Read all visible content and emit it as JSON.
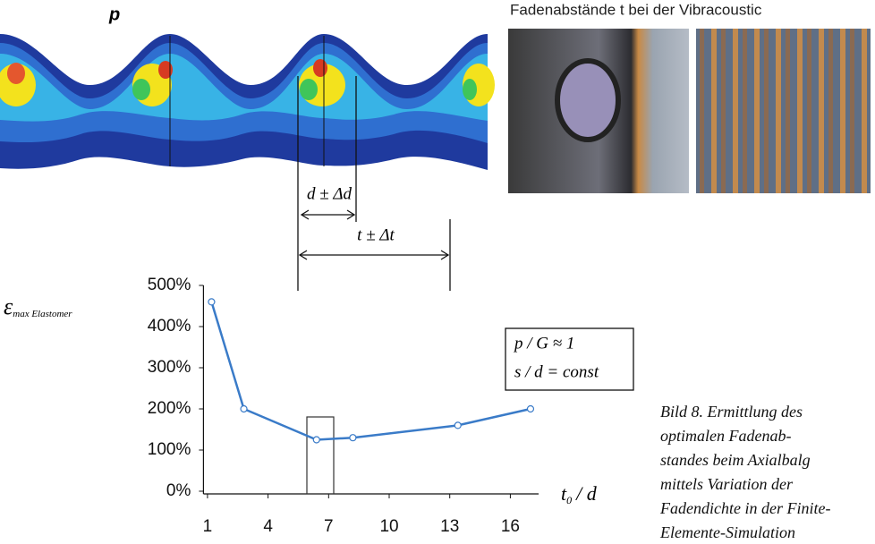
{
  "figure": {
    "pressure_label": "p",
    "photo_caption": "Fadenabstände t bei der Vibracoustic",
    "thread_spacing_label": "d ± Δd",
    "pitch_label": "t ± Δt",
    "caption_lines": [
      "Bild 8. Ermittlung des",
      "optimalen Fadenab-",
      "standes beim Axialbalg",
      "mittels Variation der",
      "Fadendichte in der Finite-",
      "Elemente-Simulation"
    ]
  },
  "chart_data": {
    "type": "line",
    "y_label": {
      "symbol": "ε",
      "subscript": "max Elastomer"
    },
    "x_label": {
      "symbol": "t",
      "subscript": "0",
      "suffix": "/ d"
    },
    "annotations": [
      "p / G ≈ 1",
      "s / d = const"
    ],
    "x": [
      1.2,
      2.8,
      6.4,
      8.2,
      13.4,
      17.0
    ],
    "values": [
      460,
      200,
      125,
      130,
      160,
      200
    ],
    "color": "#3a7bc8",
    "xlim": [
      0.8,
      17.4
    ],
    "xticks": [
      1,
      4,
      7,
      10,
      13,
      16
    ],
    "ylim": [
      0,
      500
    ],
    "yticks": [
      {
        "value": 0,
        "label": "0%"
      },
      {
        "value": 100,
        "label": "100%"
      },
      {
        "value": 200,
        "label": "200%"
      },
      {
        "value": 300,
        "label": "300%"
      },
      {
        "value": 400,
        "label": "400%"
      },
      {
        "value": 500,
        "label": "500%"
      }
    ]
  }
}
